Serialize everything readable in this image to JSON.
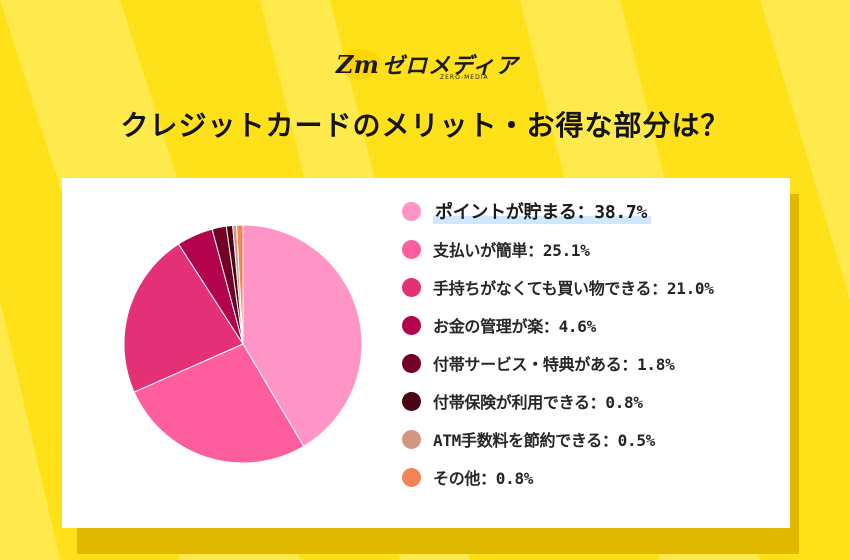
{
  "brand": {
    "logo_mark": "Zm",
    "name": "ゼロメディア",
    "sub": "ZERO-MEDIA"
  },
  "colors": {
    "background": "#ffe11a",
    "ray": "#fff27a",
    "card": "#ffffff",
    "shadow": "#e0b800",
    "highlight": "#cfe8ff"
  },
  "chart_data": {
    "type": "pie",
    "title": "クレジットカードのメリット・お得な部分は？",
    "legend_position": "right",
    "slices": [
      {
        "label": "ポイントが貯まる：38.7%",
        "name": "ポイントが貯まる",
        "value": 38.7,
        "color": "#ff94c6"
      },
      {
        "label": "支払いが簡単：25.1%",
        "name": "支払いが簡単",
        "value": 25.1,
        "color": "#fe5d9e"
      },
      {
        "label": "手持ちがなくても買い物できる：21.0%",
        "name": "手持ちがなくても買い物できる",
        "value": 21.0,
        "color": "#e33076"
      },
      {
        "label": "お金の管理が楽：4.6%",
        "name": "お金の管理が楽",
        "value": 4.6,
        "color": "#b3034c"
      },
      {
        "label": "付帯サービス・特典がある：1.8%",
        "name": "付帯サービス・特典がある",
        "value": 1.8,
        "color": "#730126"
      },
      {
        "label": "付帯保険が利用できる：0.8%",
        "name": "付帯保険が利用できる",
        "value": 0.8,
        "color": "#4a0413"
      },
      {
        "label": "ATM手数料を節約できる：0.5%",
        "name": "ATM手数料を節約できる",
        "value": 0.5,
        "color": "#d39682"
      },
      {
        "label": "その他：0.8%",
        "name": "その他",
        "value": 0.8,
        "color": "#f48455"
      }
    ]
  }
}
